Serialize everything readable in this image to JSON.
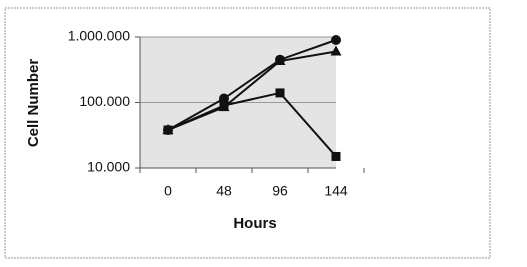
{
  "chart_data": {
    "type": "line",
    "x_label": "Hours",
    "y_label": "Cell Number",
    "categories": [
      "0",
      "48",
      "96",
      "144"
    ],
    "series": [
      {
        "color": "#111111",
        "marker": "circle",
        "values": [
          38000,
          115000,
          450000,
          900000
        ]
      },
      {
        "color": "#111111",
        "marker": "triangle",
        "values": [
          38000,
          85000,
          430000,
          600000
        ]
      },
      {
        "color": "#111111",
        "marker": "square",
        "values": [
          38000,
          90000,
          140000,
          15000
        ]
      }
    ],
    "log_y": true,
    "ylim": [
      10000,
      1000000
    ],
    "yticks": [
      {
        "value": 10000,
        "label": "10.000"
      },
      {
        "value": 100000,
        "label": "100.000"
      },
      {
        "value": 1000000,
        "label": "1.000.000"
      }
    ],
    "grid": true
  }
}
